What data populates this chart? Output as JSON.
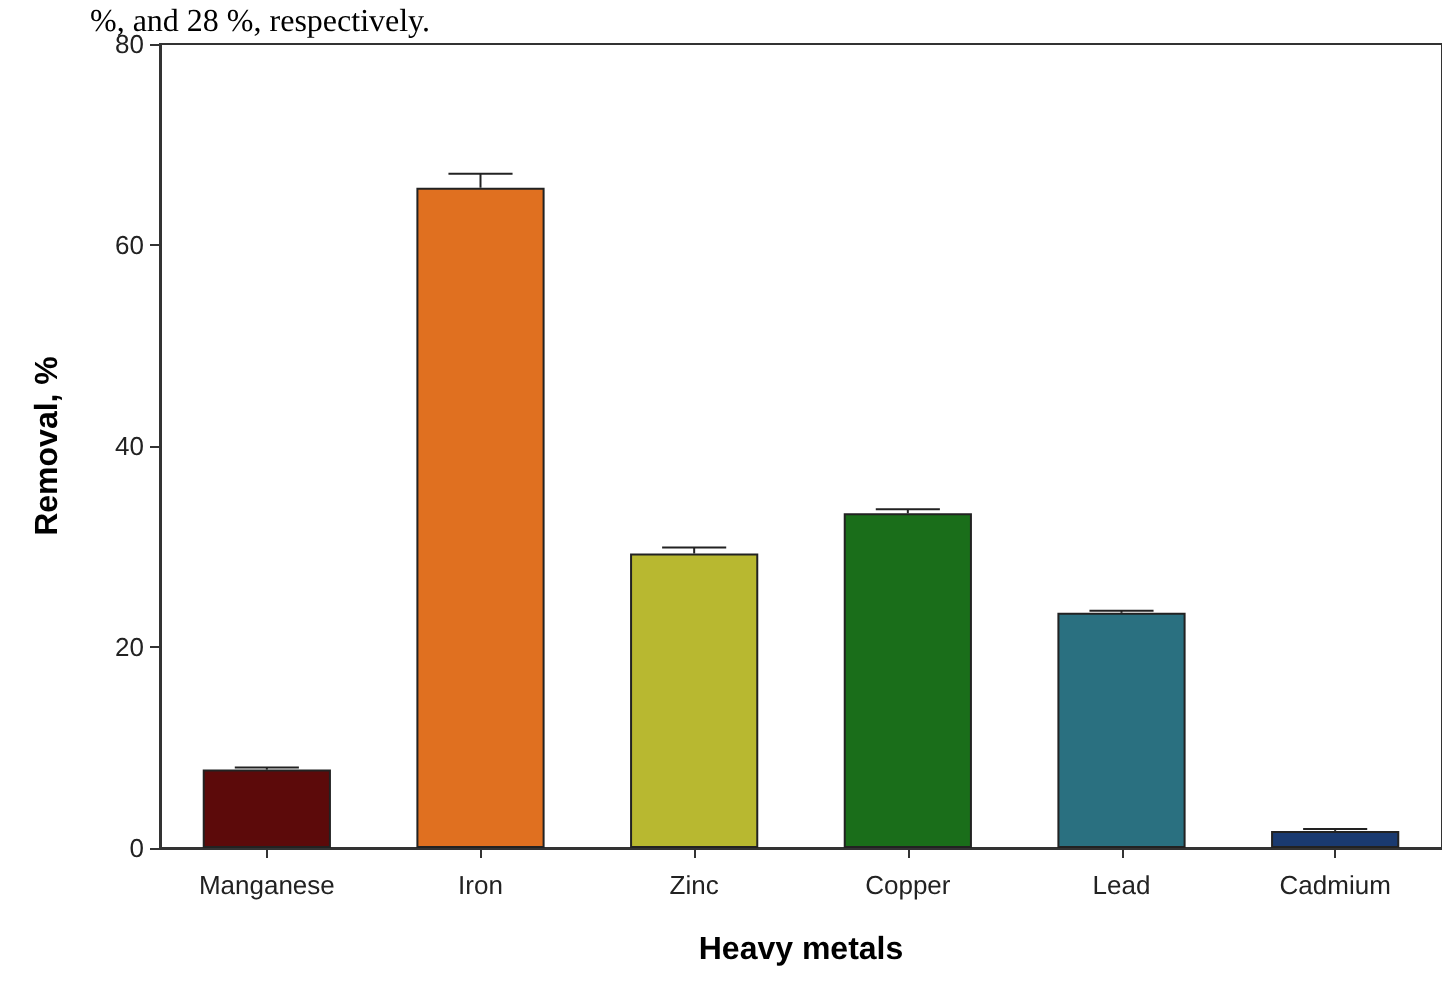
{
  "chart_data": {
    "type": "bar",
    "xlabel": "Heavy metals",
    "ylabel": "Removal, %",
    "annotations": [
      "%, and 28 %, respectively."
    ],
    "categories": [
      "Manganese",
      "Iron",
      "Zinc",
      "Copper",
      "Lead",
      "Cadmium"
    ],
    "values": [
      7.8,
      65.7,
      29.3,
      33.3,
      23.4,
      1.7
    ],
    "errors": [
      0.2,
      1.4,
      0.6,
      0.4,
      0.2,
      0.2
    ],
    "colors": [
      "#5c0a0a",
      "#e07020",
      "#b8b830",
      "#1a6e1a",
      "#2a7080",
      "#1a3a70"
    ],
    "ylim": [
      0,
      80
    ],
    "yticks": [
      0,
      20,
      40,
      60,
      80
    ],
    "grid": false
  }
}
